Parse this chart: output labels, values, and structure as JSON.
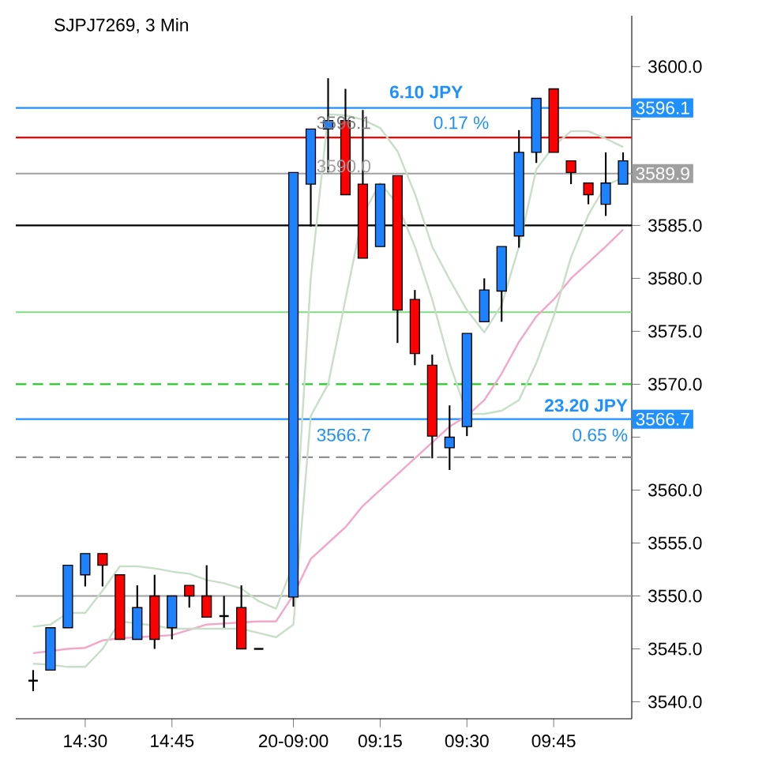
{
  "chart_data": {
    "type": "candlestick",
    "title": "SJPJ7269, 3 Min",
    "categories": [
      null,
      null,
      null,
      "14:30",
      null,
      null,
      null,
      null,
      "14:45",
      null,
      null,
      null,
      null,
      null,
      null,
      "20-09:00",
      null,
      null,
      null,
      null,
      "09:15",
      null,
      null,
      null,
      null,
      "09:30",
      null,
      null,
      null,
      null,
      "09:45",
      null,
      null,
      null,
      null
    ],
    "ohlc": [
      [
        3542.0,
        3543.0,
        3541.0,
        3542.0
      ],
      [
        3543.0,
        3547.0,
        3543.0,
        3547.0
      ],
      [
        3547.0,
        3552.9,
        3547.0,
        3552.9
      ],
      [
        3552.0,
        3554.0,
        3550.9,
        3554.0
      ],
      [
        3554.0,
        3554.0,
        3550.9,
        3552.9
      ],
      [
        3552.0,
        3552.0,
        3545.9,
        3545.9
      ],
      [
        3545.9,
        3551.0,
        3545.9,
        3548.9
      ],
      [
        3550.0,
        3552.0,
        3545.0,
        3545.9
      ],
      [
        3547.0,
        3550.0,
        3545.9,
        3550.0
      ],
      [
        3551.0,
        3551.0,
        3548.9,
        3550.0
      ],
      [
        3550.0,
        3552.9,
        3548.0,
        3548.0
      ],
      [
        3548.1,
        3550.0,
        3547.0,
        3548.1
      ],
      [
        3548.9,
        3551.0,
        3545.0,
        3545.0
      ],
      [
        3545.0,
        3545.0,
        3545.0,
        3545.0
      ],
      null,
      [
        3549.9,
        3590.0,
        3549.0,
        3590.0
      ],
      [
        3588.9,
        3594.1,
        3584.9,
        3594.1
      ],
      [
        3594.1,
        3598.9,
        3590.0,
        3594.9
      ],
      [
        3594.9,
        3597.9,
        3587.9,
        3587.9
      ],
      [
        3588.9,
        3595.9,
        3581.9,
        3581.9
      ],
      [
        3583.0,
        3588.9,
        3583.0,
        3588.9
      ],
      [
        3589.7,
        3589.7,
        3573.9,
        3577.0
      ],
      [
        3578.0,
        3578.9,
        3571.8,
        3572.9
      ],
      [
        3571.8,
        3572.8,
        3563.0,
        3565.1
      ],
      [
        3564.0,
        3568.0,
        3561.9,
        3565.0
      ],
      [
        3566.0,
        3574.8,
        3565.1,
        3574.8
      ],
      [
        3575.9,
        3580.0,
        3575.9,
        3578.9
      ],
      [
        3578.8,
        3583.0,
        3575.9,
        3583.0
      ],
      [
        3584.0,
        3594.0,
        3582.9,
        3591.9
      ],
      [
        3591.9,
        3597.0,
        3590.9,
        3597.0
      ],
      [
        3597.9,
        3597.9,
        3591.9,
        3591.9
      ],
      [
        3591.1,
        3591.1,
        3588.9,
        3590.0
      ],
      [
        3589.0,
        3589.0,
        3587.0,
        3587.9
      ],
      [
        3587.0,
        3591.9,
        3585.9,
        3589.0
      ],
      [
        3588.9,
        3591.9,
        3588.9,
        3591.1
      ]
    ],
    "colors": [
      "#000000",
      "#1e82ff",
      "#1e82ff",
      "#1e82ff",
      "#ff0000",
      "#ff0000",
      "#1e82ff",
      "#ff0000",
      "#1e82ff",
      "#ff0000",
      "#ff0000",
      "#000000",
      "#ff0000",
      "#000000",
      null,
      "#1e82ff",
      "#1e82ff",
      "#1e82ff",
      "#ff0000",
      "#ff0000",
      "#1e82ff",
      "#ff0000",
      "#ff0000",
      "#ff0000",
      "#1e82ff",
      "#1e82ff",
      "#1e82ff",
      "#1e82ff",
      "#1e82ff",
      "#1e82ff",
      "#ff0000",
      "#ff0000",
      "#ff0000",
      "#1e82ff",
      "#1e82ff"
    ],
    "series": [
      {
        "type": "line",
        "color": "#f4a6c8",
        "values": [
          3544.6,
          3544.8,
          3545.0,
          3545.1,
          3545.8,
          3546.0,
          3546.1,
          3546.2,
          3546.3,
          3546.8,
          3547.3,
          3547.4,
          3547.5,
          3547.6,
          3547.6,
          3550.1,
          3553.5,
          3555.0,
          3556.5,
          3558.5,
          3560.0,
          3561.5,
          3563.0,
          3564.5,
          3566.0,
          3567.0,
          3568.5,
          3571.0,
          3574.0,
          3576.4,
          3578.0,
          3580.0,
          3581.5,
          3583.0,
          3584.6
        ]
      },
      {
        "type": "line",
        "color": "#c8dec8",
        "values": [
          3547.1,
          3547.3,
          3548.4,
          3548.4,
          3550.5,
          3552.8,
          3552.8,
          3552.6,
          3552.3,
          3552.1,
          3551.5,
          3551.2,
          3550.7,
          3549.5,
          3548.8,
          3553.0,
          3580.0,
          3595.5,
          3595.4,
          3595.0,
          3594.2,
          3592.0,
          3588.0,
          3583.0,
          3579.9,
          3577.0,
          3574.9,
          3577.5,
          3583.0,
          3590.3,
          3592.5,
          3593.9,
          3593.9,
          3593.2,
          3592.4
        ]
      },
      {
        "type": "line",
        "color": "#c8dec8",
        "values": [
          3543.6,
          3543.5,
          3543.3,
          3543.3,
          3545.0,
          3547.6,
          3547.4,
          3547.2,
          3546.9,
          3546.9,
          3546.9,
          3546.9,
          3546.9,
          3546.5,
          3546.1,
          3547.3,
          3567.0,
          3570.0,
          3578.0,
          3586.0,
          3589.0,
          3587.0,
          3583.0,
          3578.0,
          3572.0,
          3567.2,
          3567.2,
          3567.5,
          3568.5,
          3572.0,
          3576.4,
          3582.0,
          3586.0,
          3588.8,
          3589.5
        ]
      }
    ],
    "ylim": [
      3538.4,
      3604.8
    ],
    "yticks": [
      {
        "value": 3540,
        "label": "3540.0"
      },
      {
        "value": 3545,
        "label": "3545.0"
      },
      {
        "value": 3550,
        "label": "3550.0"
      },
      {
        "value": 3555,
        "label": "3555.0"
      },
      {
        "value": 3560,
        "label": "3560.0"
      },
      {
        "value": 3565,
        "label": null
      },
      {
        "value": 3570,
        "label": "3570.0"
      },
      {
        "value": 3575,
        "label": "3575.0"
      },
      {
        "value": 3580,
        "label": "3580.0"
      },
      {
        "value": 3585,
        "label": "3585.0"
      },
      {
        "value": 3590,
        "label": null
      },
      {
        "value": 3595,
        "label": null
      },
      {
        "value": 3600,
        "label": "3600.0"
      }
    ],
    "ref_lines": [
      {
        "axis": "y",
        "value": 3596.1,
        "label": "3596.1",
        "color": "#1e90ff",
        "line_style": "solid"
      },
      {
        "axis": "y",
        "value": 3593.3,
        "color": "#ff0000",
        "line_style": "solid"
      },
      {
        "axis": "y",
        "value": 3589.9,
        "label": "3589.9",
        "color": "#a0a0a0",
        "line_style": "solid"
      },
      {
        "axis": "y",
        "value": 3585.0,
        "color": "#000000",
        "line_style": "solid"
      },
      {
        "axis": "y",
        "value": 3576.8,
        "color": "#7fdc7f",
        "line_style": "solid"
      },
      {
        "axis": "y",
        "value": 3570.0,
        "color": "#22cc22",
        "line_style": "dashed"
      },
      {
        "axis": "y",
        "value": 3566.7,
        "label": "3566.7",
        "color": "#1e90ff",
        "line_style": "solid"
      },
      {
        "axis": "y",
        "value": 3563.1,
        "color": "#909090",
        "line_style": "dashed"
      },
      {
        "axis": "y",
        "value": 3550.0,
        "color": "#a0a0a0",
        "line_style": "solid"
      }
    ],
    "annotations": [
      "6.10 JPY",
      "0.17 %",
      "3596.1",
      "3590.0",
      "23.20 JPY",
      "0.65 %",
      "3566.7"
    ],
    "grid": false
  }
}
